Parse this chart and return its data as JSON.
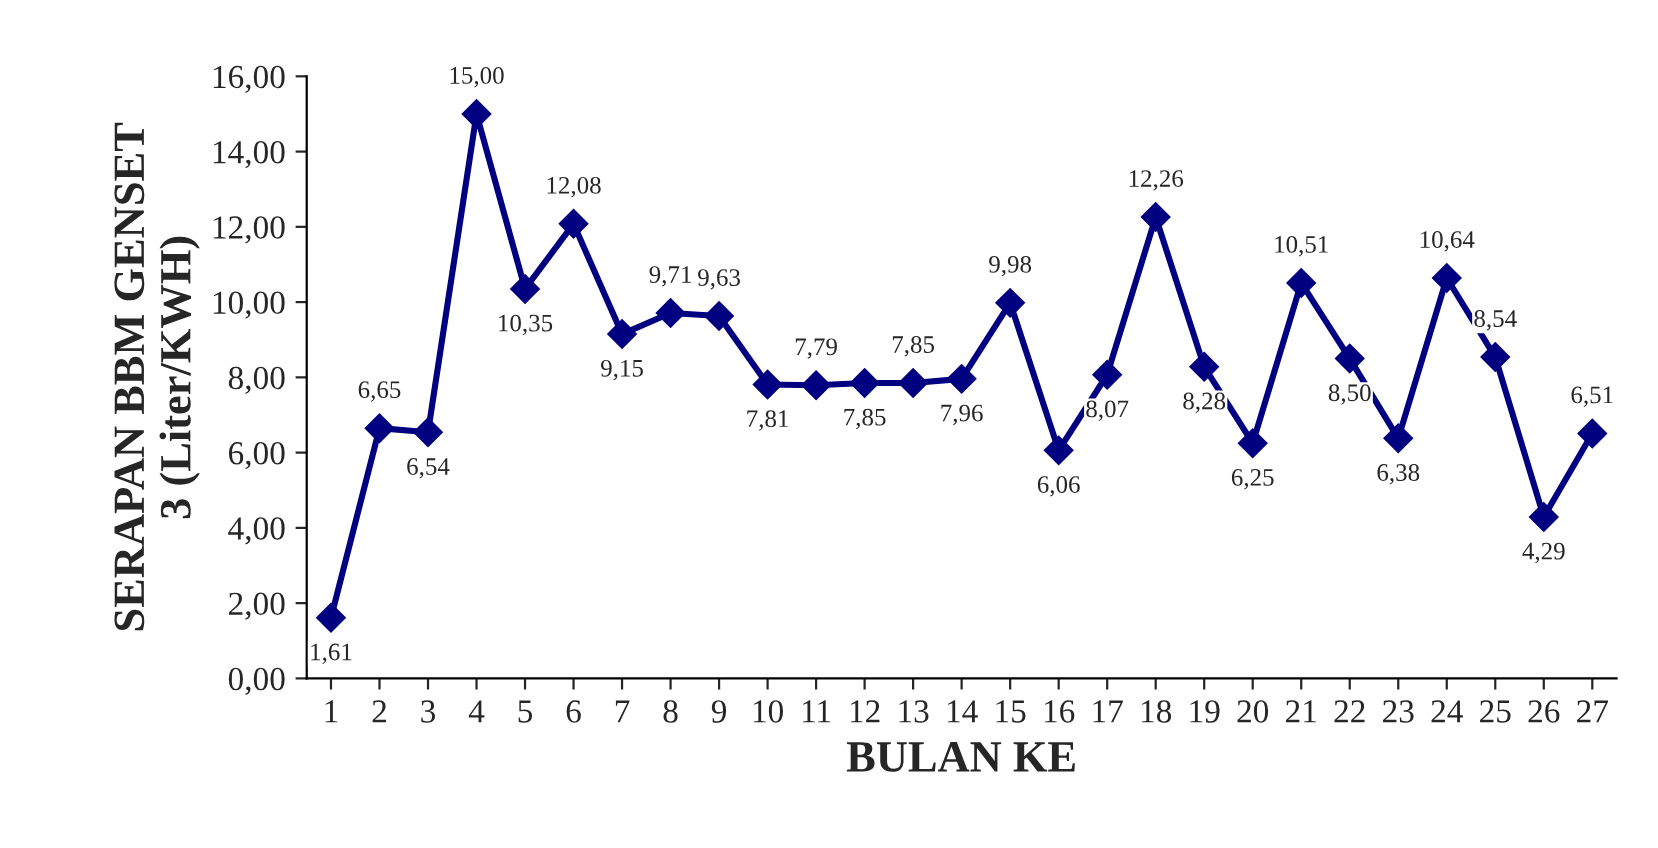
{
  "chart_data": {
    "type": "line",
    "xlabel": "BULAN KE",
    "ylabel": "SERAPAN BBM GENSET\n3 (Liter/KWH)",
    "categories": [
      "1",
      "2",
      "3",
      "4",
      "5",
      "6",
      "7",
      "8",
      "9",
      "10",
      "11",
      "12",
      "13",
      "14",
      "15",
      "16",
      "17",
      "18",
      "19",
      "20",
      "21",
      "22",
      "23",
      "24",
      "25",
      "26",
      "27"
    ],
    "series": [
      {
        "color": "#000080",
        "values": [
          1.61,
          6.65,
          6.54,
          15.0,
          10.35,
          12.08,
          9.15,
          9.71,
          9.63,
          7.81,
          7.79,
          7.85,
          7.85,
          7.96,
          9.98,
          6.06,
          8.07,
          12.26,
          8.28,
          6.25,
          10.51,
          8.5,
          6.38,
          10.64,
          8.54,
          4.29,
          6.51
        ],
        "value_labels": [
          "1,61",
          "6,65",
          "6,54",
          "15,00",
          "10,35",
          "12,08",
          "9,15",
          "9,71",
          "9,63",
          "7,81",
          "7,79",
          "7,85",
          "7,85",
          "7,96",
          "9,98",
          "6,06",
          "8,07",
          "12,26",
          "8,28",
          "6,25",
          "10,51",
          "8,50",
          "6,38",
          "10,64",
          "8,54",
          "4,29",
          "6,51"
        ]
      }
    ],
    "ylim": [
      0,
      16
    ],
    "yticks": [
      {
        "value": 0,
        "label": "0,00"
      },
      {
        "value": 2,
        "label": "2,00"
      },
      {
        "value": 4,
        "label": "4,00"
      },
      {
        "value": 6,
        "label": "6,00"
      },
      {
        "value": 8,
        "label": "8,00"
      },
      {
        "value": 10,
        "label": "10,00"
      },
      {
        "value": 12,
        "label": "12,00"
      },
      {
        "value": 14,
        "label": "14,00"
      },
      {
        "value": 16,
        "label": "16,00"
      }
    ],
    "marker": "diamond",
    "line_style": "solid",
    "grid": false,
    "legend": false
  }
}
